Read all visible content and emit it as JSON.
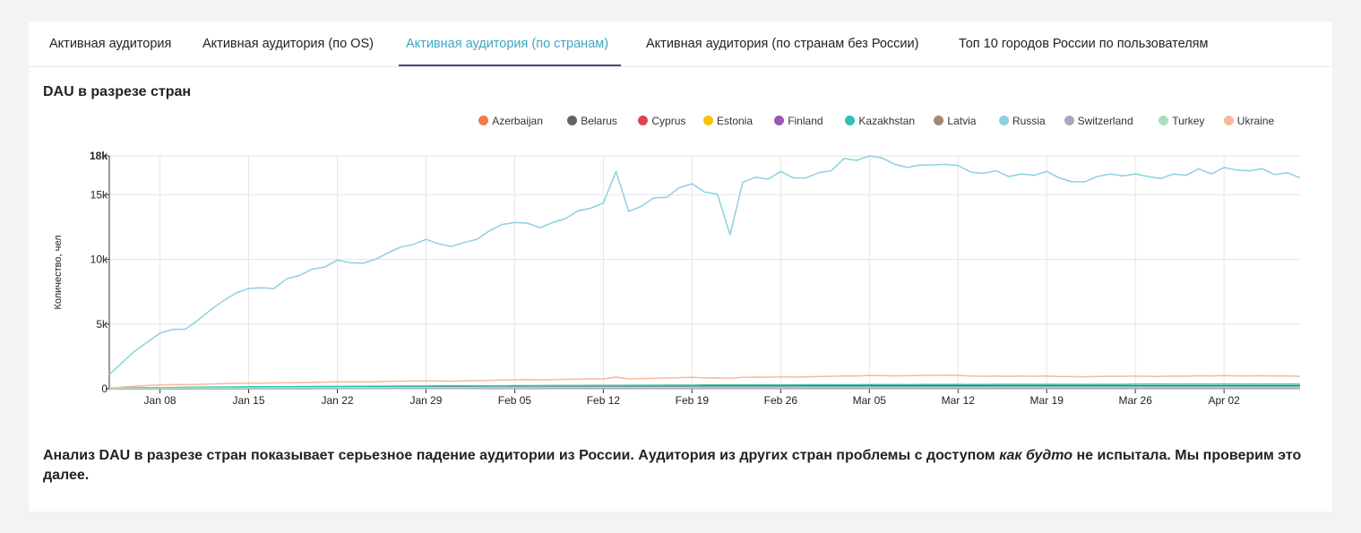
{
  "tabs": [
    {
      "label": "Активная аудитория"
    },
    {
      "label": "Активная аудитория (по OS)"
    },
    {
      "label": "Активная аудитория (по странам)"
    },
    {
      "label": "Активная аудитория (по странам без России)"
    },
    {
      "label": "Топ 10 городов России по пользователям"
    }
  ],
  "active_tab": 2,
  "analysis": {
    "part1": "Анализ DAU в разрезе стран показывает серьезное падение аудитории из России. Аудитория из других стран проблемы с доступом ",
    "emphasis": "как будто",
    "part2": " не испытала. Мы проверим это далее."
  },
  "chart_data": {
    "type": "line",
    "title": "DAU в разрезе стран",
    "ylabel": "Количество, чел",
    "ylim": [
      0,
      18000
    ],
    "yticks": [
      "0",
      "5k",
      "10k",
      "15k",
      "18k"
    ],
    "ytick_values": [
      0,
      5000,
      10000,
      15000,
      18000
    ],
    "x_start": "2022-01-04",
    "x_end": "2022-04-08",
    "xticks": [
      "Jan 08",
      "Jan 15",
      "Jan 22",
      "Jan 29",
      "Feb 05",
      "Feb 12",
      "Feb 19",
      "Feb 26",
      "Mar 05",
      "Mar 12",
      "Mar 19",
      "Mar 26",
      "Apr 02"
    ],
    "grid": true,
    "legend_position": "top-right",
    "series": [
      {
        "name": "Azerbaijan",
        "color": "#f07c49",
        "values": [
          5,
          10,
          15,
          20,
          20,
          25,
          25,
          30,
          30,
          30,
          30,
          30,
          35,
          35,
          35,
          35,
          40,
          40,
          40,
          40,
          40,
          40,
          45,
          45,
          45,
          45,
          45,
          45,
          45,
          50,
          50,
          50,
          50,
          50,
          50,
          50,
          55,
          55,
          55,
          55,
          55,
          55,
          55,
          55,
          55,
          55,
          55,
          55,
          55,
          55,
          55,
          55,
          55,
          55,
          55,
          55,
          55,
          55,
          55,
          55,
          55,
          55,
          55,
          55,
          55,
          55,
          55,
          55,
          55,
          55,
          55,
          55,
          55,
          55,
          55,
          55,
          55,
          55,
          55,
          55,
          55,
          55,
          55,
          55,
          55,
          55,
          55,
          55,
          55,
          55,
          55,
          55,
          55,
          55,
          55
        ]
      },
      {
        "name": "Belarus",
        "color": "#636363",
        "values": [
          20,
          40,
          60,
          70,
          80,
          90,
          100,
          110,
          110,
          120,
          120,
          130,
          130,
          140,
          140,
          150,
          150,
          160,
          160,
          160,
          170,
          170,
          170,
          180,
          180,
          180,
          190,
          190,
          190,
          190,
          200,
          200,
          200,
          200,
          200,
          200,
          200,
          210,
          210,
          210,
          210,
          210,
          210,
          220,
          220,
          220,
          220,
          220,
          220,
          230,
          230,
          230,
          230,
          230,
          230,
          230,
          230,
          230,
          230,
          230,
          230,
          230,
          230,
          230,
          230,
          230,
          230,
          230,
          230,
          230,
          230,
          230,
          230,
          230,
          230,
          230,
          230,
          230,
          230,
          230,
          230,
          230,
          230,
          230,
          230,
          230,
          230,
          230,
          230,
          230,
          230,
          230,
          230,
          230,
          230
        ]
      },
      {
        "name": "Cyprus",
        "color": "#e0474c",
        "values": [
          0,
          2,
          4,
          5,
          6,
          6,
          7,
          7,
          8,
          8,
          8,
          9,
          9,
          10,
          10,
          10,
          10,
          11,
          11,
          12,
          12,
          12,
          13,
          13,
          13,
          14,
          14,
          14,
          14,
          15,
          15,
          15,
          15,
          16,
          16,
          16,
          16,
          17,
          17,
          17,
          17,
          18,
          18,
          18,
          18,
          19,
          19,
          19,
          20,
          20,
          20,
          20,
          20,
          20,
          20,
          20,
          21,
          21,
          21,
          21,
          21,
          21,
          22,
          22,
          22,
          22,
          22,
          22,
          22,
          22,
          22,
          22,
          23,
          23,
          23,
          23,
          23,
          23,
          23,
          23,
          23,
          23,
          23,
          23,
          23,
          23,
          24,
          24,
          24,
          24,
          24,
          24,
          24,
          24,
          24
        ]
      },
      {
        "name": "Estonia",
        "color": "#f5c400",
        "values": [
          0,
          2,
          3,
          4,
          5,
          6,
          6,
          7,
          7,
          8,
          8,
          8,
          9,
          9,
          9,
          10,
          10,
          10,
          10,
          11,
          11,
          11,
          11,
          12,
          12,
          12,
          12,
          12,
          13,
          13,
          13,
          13,
          13,
          13,
          14,
          14,
          14,
          14,
          14,
          14,
          15,
          15,
          15,
          15,
          15,
          15,
          15,
          16,
          16,
          16,
          16,
          16,
          16,
          16,
          16,
          17,
          17,
          17,
          17,
          17,
          17,
          17,
          17,
          17,
          18,
          18,
          18,
          18,
          18,
          18,
          18,
          18,
          18,
          18,
          18,
          18,
          18,
          18,
          18,
          18,
          18,
          18,
          18,
          18,
          18,
          18,
          18,
          18,
          18,
          18,
          18,
          18,
          18,
          18,
          18
        ]
      },
      {
        "name": "Finland",
        "color": "#9b59b6",
        "values": [
          0,
          3,
          5,
          7,
          8,
          9,
          10,
          11,
          12,
          13,
          13,
          14,
          14,
          15,
          15,
          16,
          16,
          17,
          17,
          17,
          18,
          18,
          18,
          19,
          19,
          19,
          20,
          20,
          20,
          21,
          21,
          21,
          21,
          22,
          22,
          22,
          22,
          23,
          23,
          23,
          23,
          24,
          24,
          24,
          24,
          24,
          25,
          25,
          25,
          25,
          25,
          25,
          26,
          26,
          26,
          26,
          26,
          26,
          26,
          27,
          27,
          27,
          27,
          27,
          27,
          27,
          27,
          28,
          28,
          28,
          28,
          28,
          28,
          28,
          28,
          28,
          28,
          28,
          28,
          28,
          28,
          28,
          28,
          28,
          28,
          28,
          28,
          28,
          28,
          28,
          28,
          28,
          28,
          28,
          28
        ]
      },
      {
        "name": "Kazakhstan",
        "color": "#2fbfb8",
        "values": [
          20,
          40,
          60,
          80,
          90,
          100,
          110,
          120,
          130,
          130,
          140,
          150,
          150,
          160,
          160,
          170,
          170,
          180,
          180,
          190,
          190,
          200,
          200,
          210,
          210,
          210,
          220,
          220,
          220,
          230,
          230,
          230,
          240,
          240,
          240,
          250,
          250,
          250,
          260,
          260,
          260,
          270,
          270,
          270,
          280,
          280,
          280,
          290,
          290,
          290,
          290,
          300,
          300,
          300,
          300,
          310,
          310,
          310,
          310,
          310,
          320,
          320,
          320,
          320,
          330,
          330,
          330,
          330,
          330,
          330,
          340,
          340,
          340,
          340,
          340,
          340,
          340,
          340,
          340,
          340,
          340,
          350,
          350,
          350,
          350,
          350,
          350,
          350,
          350,
          350,
          350,
          350,
          350,
          350,
          350
        ]
      },
      {
        "name": "Latvia",
        "color": "#a08a70",
        "values": [
          0,
          2,
          4,
          5,
          6,
          7,
          8,
          8,
          9,
          9,
          10,
          10,
          11,
          11,
          11,
          12,
          12,
          12,
          13,
          13,
          13,
          14,
          14,
          14,
          14,
          15,
          15,
          15,
          15,
          16,
          16,
          16,
          16,
          16,
          17,
          17,
          17,
          17,
          17,
          18,
          18,
          18,
          18,
          18,
          18,
          19,
          19,
          19,
          19,
          19,
          19,
          20,
          20,
          20,
          20,
          20,
          20,
          20,
          20,
          21,
          21,
          21,
          21,
          21,
          21,
          21,
          21,
          21,
          22,
          22,
          22,
          22,
          22,
          22,
          22,
          22,
          22,
          22,
          22,
          22,
          22,
          22,
          22,
          22,
          22,
          22,
          22,
          22,
          22,
          22,
          22,
          22,
          22,
          22,
          22
        ]
      },
      {
        "name": "Russia",
        "color": "#8dd0e2",
        "values": [
          1100,
          2000,
          2900,
          3600,
          4300,
          4600,
          4600,
          5300,
          6100,
          6800,
          7400,
          7750,
          7800,
          7750,
          8500,
          8750,
          9250,
          9400,
          9950,
          9750,
          9700,
          10000,
          10500,
          10950,
          11150,
          11550,
          11200,
          11000,
          11300,
          11550,
          12200,
          12700,
          12850,
          12800,
          12450,
          12850,
          13150,
          13750,
          13950,
          14350,
          16800,
          13700,
          14100,
          14750,
          14800,
          15550,
          15850,
          15200,
          15050,
          11900,
          15950,
          16350,
          16200,
          16800,
          16300,
          16300,
          16700,
          16850,
          17800,
          17650,
          18000,
          17850,
          17350,
          17100,
          17300,
          17300,
          17350,
          17250,
          16750,
          16650,
          16850,
          16400,
          16600,
          16500,
          16800,
          16300,
          16000,
          16000,
          16400,
          16600,
          16450,
          16600,
          16400,
          16250,
          16600,
          16500,
          17000,
          16600,
          17100,
          16900,
          16850,
          17000,
          16550,
          16700,
          16300
        ]
      },
      {
        "name": "Switzerland",
        "color": "#a5a9bf",
        "values": [
          0,
          3,
          5,
          7,
          8,
          9,
          10,
          11,
          12,
          12,
          13,
          13,
          14,
          14,
          15,
          15,
          16,
          16,
          16,
          17,
          17,
          17,
          18,
          18,
          18,
          19,
          19,
          19,
          19,
          20,
          20,
          20,
          20,
          21,
          21,
          21,
          21,
          22,
          22,
          22,
          22,
          22,
          23,
          23,
          23,
          23,
          23,
          24,
          24,
          24,
          24,
          24,
          24,
          25,
          25,
          25,
          25,
          25,
          25,
          25,
          26,
          26,
          26,
          26,
          26,
          26,
          26,
          26,
          26,
          27,
          27,
          27,
          27,
          27,
          27,
          27,
          27,
          27,
          27,
          27,
          27,
          27,
          27,
          27,
          27,
          27,
          27,
          27,
          27,
          27,
          27,
          27,
          27,
          27,
          27
        ]
      },
      {
        "name": "Turkey",
        "color": "#a8e0bd",
        "values": [
          10,
          20,
          30,
          40,
          45,
          50,
          55,
          60,
          60,
          65,
          65,
          70,
          70,
          75,
          75,
          80,
          80,
          85,
          85,
          90,
          90,
          90,
          95,
          95,
          95,
          100,
          100,
          100,
          100,
          105,
          105,
          105,
          105,
          110,
          110,
          110,
          110,
          110,
          115,
          115,
          115,
          115,
          115,
          120,
          120,
          120,
          120,
          120,
          125,
          125,
          125,
          125,
          125,
          125,
          130,
          130,
          130,
          130,
          130,
          130,
          130,
          135,
          135,
          135,
          135,
          135,
          135,
          135,
          135,
          135,
          140,
          140,
          140,
          140,
          140,
          140,
          140,
          140,
          140,
          140,
          140,
          140,
          140,
          140,
          140,
          140,
          140,
          140,
          140,
          140,
          140,
          140,
          140,
          140,
          140
        ]
      },
      {
        "name": "Ukraine",
        "color": "#f8b99a",
        "values": [
          60,
          120,
          200,
          250,
          290,
          320,
          330,
          340,
          370,
          400,
          420,
          440,
          430,
          450,
          470,
          470,
          490,
          510,
          530,
          540,
          530,
          550,
          570,
          590,
          600,
          610,
          600,
          590,
          610,
          630,
          650,
          680,
          700,
          710,
          690,
          710,
          730,
          750,
          760,
          760,
          900,
          760,
          790,
          820,
          830,
          860,
          880,
          840,
          850,
          820,
          880,
          900,
          890,
          930,
          910,
          920,
          950,
          960,
          1000,
          990,
          1030,
          1020,
          1000,
          1010,
          1030,
          1040,
          1050,
          1040,
          980,
          970,
          990,
          960,
          980,
          970,
          990,
          950,
          940,
          930,
          950,
          970,
          960,
          980,
          960,
          950,
          980,
          970,
          1010,
          980,
          1020,
          1000,
          990,
          1010,
          980,
          1000,
          960
        ]
      }
    ]
  }
}
